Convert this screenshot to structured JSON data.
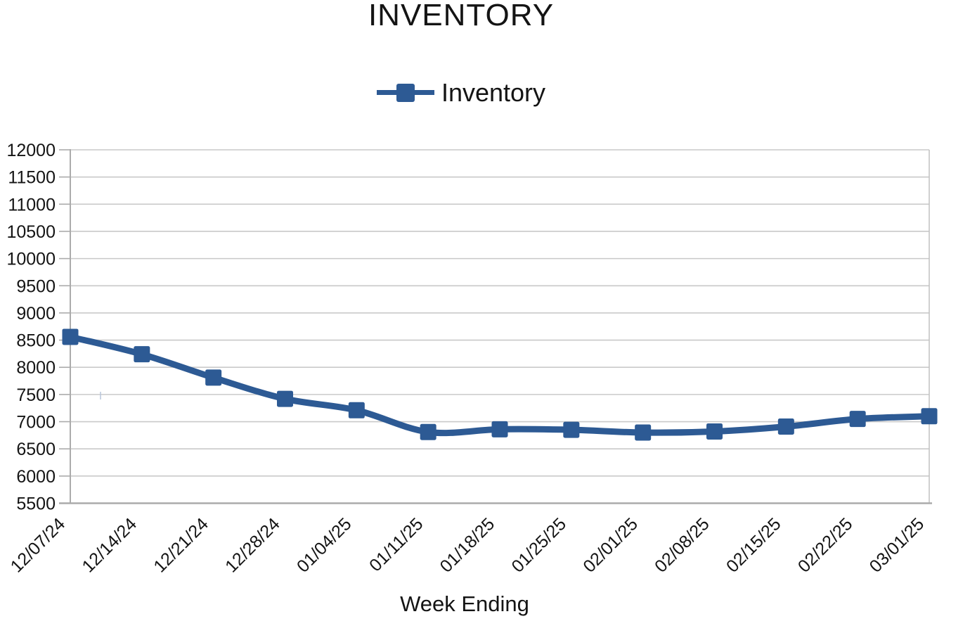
{
  "chart_data": {
    "type": "line",
    "title": "INVENTORY",
    "xlabel": "Week Ending",
    "ylabel": "",
    "legend_position": "top-center",
    "grid": true,
    "smooth_line": true,
    "categories": [
      "12/07/24",
      "12/14/24",
      "12/21/24",
      "12/28/24",
      "01/04/25",
      "01/11/25",
      "01/18/25",
      "01/25/25",
      "02/01/25",
      "02/08/25",
      "02/15/25",
      "02/22/25",
      "03/01/25"
    ],
    "series": [
      {
        "name": "Inventory",
        "color": "#2D5A94",
        "marker": "square",
        "values": [
          8560,
          8240,
          7810,
          7420,
          7210,
          6810,
          6860,
          6850,
          6800,
          6820,
          6910,
          7050,
          7100
        ]
      }
    ],
    "y_axis": {
      "min": 5500,
      "max": 12000,
      "step": 500,
      "ticks": [
        12000,
        11500,
        11000,
        10500,
        10000,
        9500,
        9000,
        8500,
        8000,
        7500,
        7000,
        6500,
        6000,
        5500
      ]
    }
  },
  "legend": {
    "label": "Inventory"
  },
  "colors": {
    "series_blue": "#2D5A94",
    "gridline": "#C9C9C9",
    "axis_line": "#ABABAB",
    "plot_border": "#C4C4C4",
    "text": "#141414",
    "caret_artifact": "#B9C6DA"
  }
}
